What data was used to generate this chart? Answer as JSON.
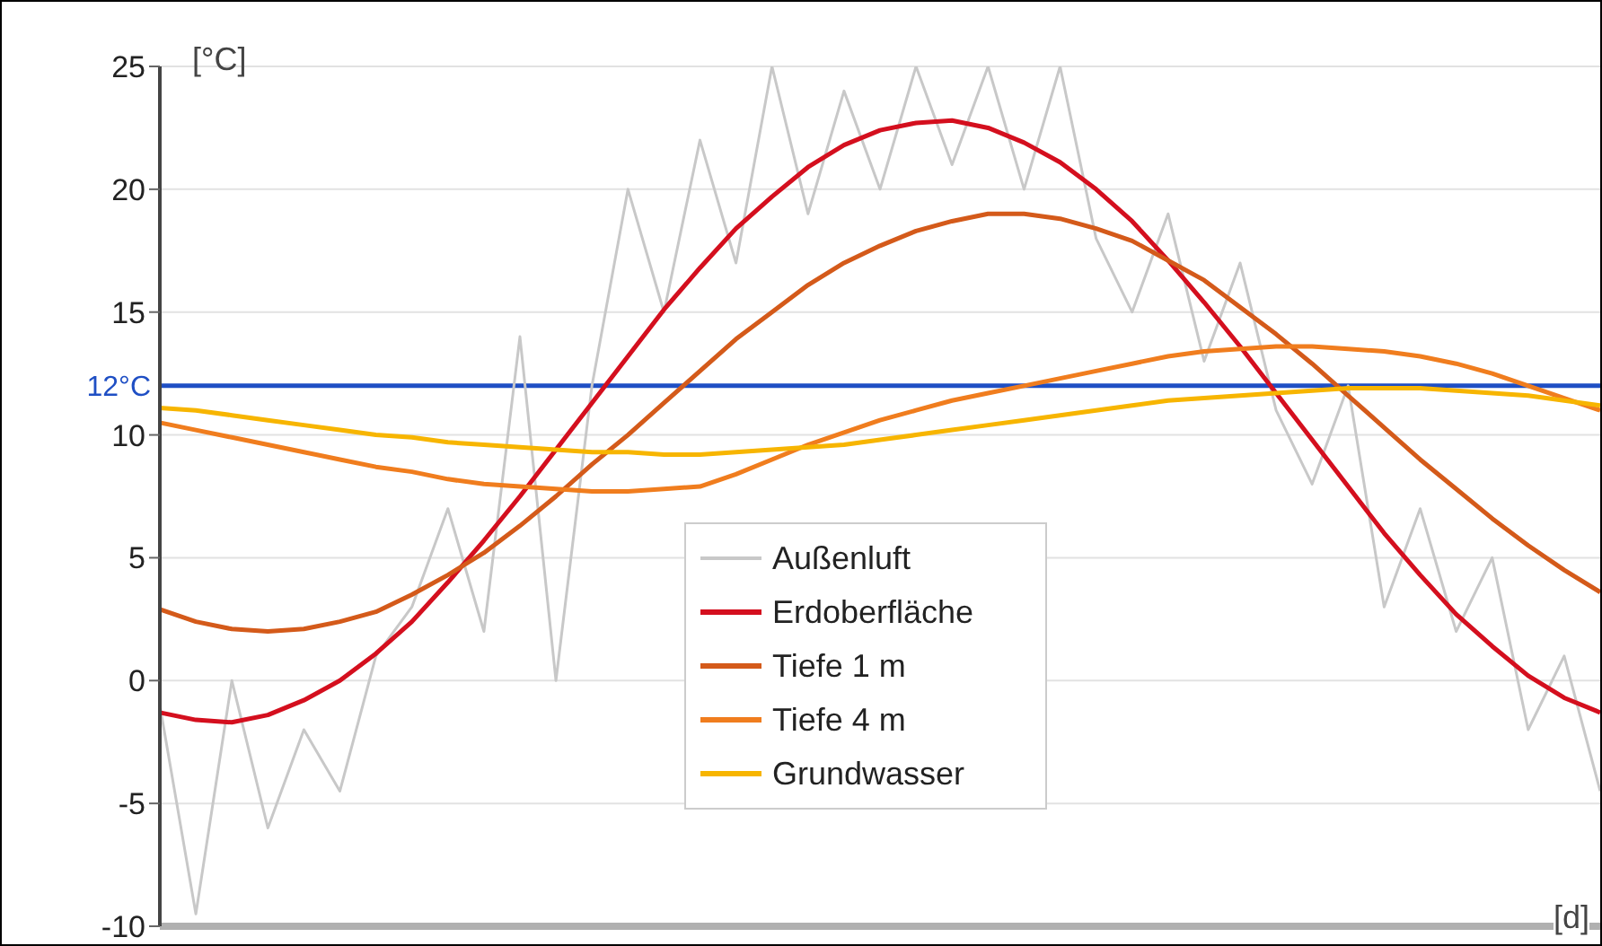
{
  "chart_data": {
    "type": "line",
    "ylabel": "[°C]",
    "xlabel": "[d]",
    "categories": [
      null,
      null,
      null,
      null,
      null,
      null,
      null,
      null,
      null,
      null,
      null,
      null,
      null,
      null,
      null,
      null,
      null,
      null,
      null,
      null,
      null,
      null,
      null,
      null,
      null,
      null,
      null,
      null,
      null,
      null,
      null,
      null,
      null,
      null,
      null,
      null,
      null,
      null,
      null,
      null,
      null
    ],
    "series": [
      {
        "name": "Außenluft",
        "color": "#c8c8c8",
        "values": [
          -1,
          -9.5,
          0,
          -6,
          -2,
          -4.5,
          1,
          3,
          7,
          2,
          14,
          0,
          12,
          20,
          15,
          22,
          17,
          25,
          19,
          24,
          20,
          25,
          21,
          25,
          20,
          25,
          18,
          15,
          19,
          13,
          17,
          11,
          8,
          12,
          3,
          7,
          2,
          5,
          -2,
          1,
          -4.5
        ]
      },
      {
        "name": "Erdoberfläche",
        "color": "#d40f1e",
        "values": [
          -1.3,
          -1.6,
          -1.7,
          -1.4,
          -0.8,
          0,
          1.1,
          2.4,
          4,
          5.7,
          7.5,
          9.4,
          11.3,
          13.2,
          15.1,
          16.8,
          18.4,
          19.7,
          20.9,
          21.8,
          22.4,
          22.7,
          22.8,
          22.5,
          21.9,
          21.1,
          20,
          18.7,
          17.1,
          15.4,
          13.6,
          11.7,
          9.8,
          7.9,
          6,
          4.3,
          2.7,
          1.4,
          0.2,
          -0.7,
          -1.3
        ]
      },
      {
        "name": "Tiefe 1 m",
        "color": "#d45a1a",
        "values": [
          2.9,
          2.4,
          2.1,
          2,
          2.1,
          2.4,
          2.8,
          3.5,
          4.3,
          5.2,
          6.3,
          7.5,
          8.8,
          10,
          11.3,
          12.6,
          13.9,
          15,
          16.1,
          17,
          17.7,
          18.3,
          18.7,
          19,
          19,
          18.8,
          18.4,
          17.9,
          17.1,
          16.3,
          15.2,
          14.1,
          12.9,
          11.6,
          10.3,
          9,
          7.8,
          6.6,
          5.5,
          4.5,
          3.6
        ]
      },
      {
        "name": "Tiefe 4 m",
        "color": "#f07d1e",
        "values": [
          10.5,
          10.2,
          9.9,
          9.6,
          9.3,
          9,
          8.7,
          8.5,
          8.2,
          8,
          7.9,
          7.8,
          7.7,
          7.7,
          7.8,
          7.9,
          8.4,
          9,
          9.6,
          10.1,
          10.6,
          11,
          11.4,
          11.7,
          12,
          12.3,
          12.6,
          12.9,
          13.2,
          13.4,
          13.5,
          13.6,
          13.6,
          13.5,
          13.4,
          13.2,
          12.9,
          12.5,
          12,
          11.5,
          11
        ]
      },
      {
        "name": "Grundwasser",
        "color": "#f7b500",
        "values": [
          11.1,
          11,
          10.8,
          10.6,
          10.4,
          10.2,
          10,
          9.9,
          9.7,
          9.6,
          9.5,
          9.4,
          9.3,
          9.3,
          9.2,
          9.2,
          9.3,
          9.4,
          9.5,
          9.6,
          9.8,
          10,
          10.2,
          10.4,
          10.6,
          10.8,
          11,
          11.2,
          11.4,
          11.5,
          11.6,
          11.7,
          11.8,
          11.9,
          11.9,
          11.9,
          11.8,
          11.7,
          11.6,
          11.4,
          11.2
        ]
      }
    ],
    "ylim": [
      -10,
      25
    ],
    "yticks": [
      -10,
      -5,
      0,
      5,
      10,
      15,
      20,
      25
    ],
    "ref_lines": [
      {
        "axis": "y",
        "value": 12,
        "label": "12°C",
        "color": "#1f4fc4"
      }
    ],
    "grid": "y",
    "legend": "bottom",
    "tick_labels": "y",
    "marker": "none",
    "line_style": "solid"
  }
}
